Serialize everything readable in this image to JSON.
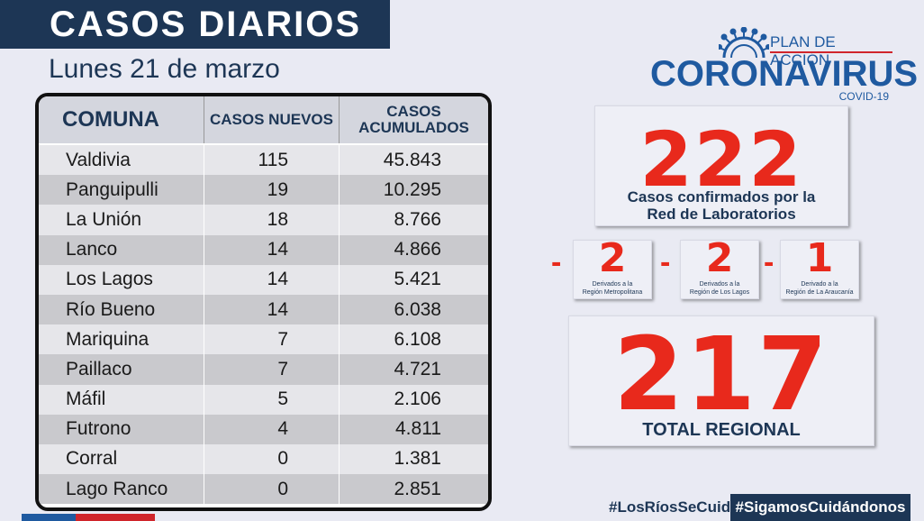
{
  "header": {
    "title": "CASOS DIARIOS",
    "date": "Lunes 21 de marzo"
  },
  "table": {
    "columns": [
      "COMUNA",
      "CASOS NUEVOS",
      "CASOS",
      "ACUMULADOS"
    ],
    "rows": [
      {
        "comuna": "Valdivia",
        "nuevos": "115",
        "acumulados": "45.843"
      },
      {
        "comuna": "Panguipulli",
        "nuevos": "19",
        "acumulados": "10.295"
      },
      {
        "comuna": "La Unión",
        "nuevos": "18",
        "acumulados": "8.766"
      },
      {
        "comuna": "Lanco",
        "nuevos": "14",
        "acumulados": "4.866"
      },
      {
        "comuna": "Los Lagos",
        "nuevos": "14",
        "acumulados": "5.421"
      },
      {
        "comuna": "Río Bueno",
        "nuevos": "14",
        "acumulados": "6.038"
      },
      {
        "comuna": "Mariquina",
        "nuevos": "7",
        "acumulados": "6.108"
      },
      {
        "comuna": "Paillaco",
        "nuevos": "7",
        "acumulados": "4.721"
      },
      {
        "comuna": "Máfil",
        "nuevos": "5",
        "acumulados": "2.106"
      },
      {
        "comuna": "Futrono",
        "nuevos": "4",
        "acumulados": "4.811"
      },
      {
        "comuna": "Corral",
        "nuevos": "0",
        "acumulados": "1.381"
      },
      {
        "comuna": "Lago Ranco",
        "nuevos": "0",
        "acumulados": "2.851"
      }
    ]
  },
  "logo": {
    "plan": "PLAN DE ACCIÓN",
    "main": "CORONAVIRUS",
    "covid": "COVID-19",
    "icon": "virus-icon"
  },
  "confirmed": {
    "number": "222",
    "label_line1": "Casos confirmados  por la",
    "label_line2": "Red de Laboratorios"
  },
  "derived": [
    {
      "minus": "-",
      "number": "2",
      "line1": "Derivados a la",
      "line2": "Región Metropolitana"
    },
    {
      "minus": "-",
      "number": "2",
      "line1": "Derivados a la",
      "line2": "Región de Los Lagos"
    },
    {
      "minus": "-",
      "number": "1",
      "line1": "Derivado a la",
      "line2": "Región de La Araucanía"
    }
  ],
  "total": {
    "number": "217",
    "label": "TOTAL REGIONAL"
  },
  "footer": {
    "hashtag1": "#LosRíosSeCuida",
    "hashtag2": "#SigamosCuidándonos"
  },
  "colors": {
    "navy": "#1d3655",
    "brand_blue": "#1f5aa0",
    "red": "#e8291c",
    "background": "#e9eaf3"
  }
}
